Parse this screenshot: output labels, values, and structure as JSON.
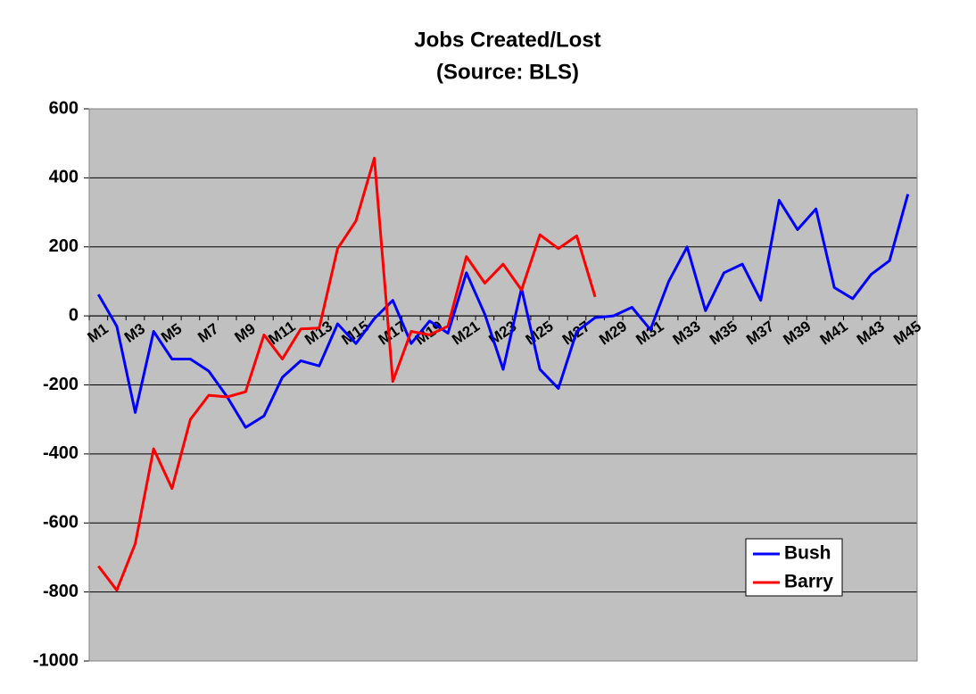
{
  "chart_data": {
    "type": "line",
    "title": "Jobs Created/Lost",
    "subtitle": "(Source: BLS)",
    "categories": [
      "M1",
      null,
      "M3",
      null,
      "M5",
      null,
      "M7",
      null,
      "M9",
      null,
      "M11",
      null,
      "M13",
      null,
      "M15",
      null,
      "M17",
      null,
      "M19",
      null,
      "M21",
      null,
      "M23",
      null,
      "M25",
      null,
      "M27",
      null,
      "M29",
      null,
      "M31",
      null,
      "M33",
      null,
      "M35",
      null,
      "M37",
      null,
      "M39",
      null,
      "M41",
      null,
      "M43",
      null,
      "M45"
    ],
    "series": [
      {
        "name": "Bush",
        "color": "#0000ff",
        "values": [
          62,
          -30,
          -280,
          -45,
          -125,
          -125,
          -160,
          -235,
          -323,
          -290,
          -178,
          -130,
          -145,
          -23,
          -80,
          -8,
          45,
          -80,
          -15,
          -50,
          125,
          5,
          -155,
          80,
          -155,
          -210,
          -45,
          -5,
          0,
          25,
          -40,
          100,
          200,
          15,
          125,
          150,
          45,
          335,
          250,
          310,
          82,
          50,
          120,
          160,
          353
        ]
      },
      {
        "name": "Barry",
        "color": "#ff0000",
        "values": [
          -725,
          -795,
          -660,
          -385,
          -500,
          -300,
          -230,
          -235,
          -220,
          -55,
          -125,
          -38,
          -35,
          195,
          275,
          457,
          -190,
          -45,
          -55,
          -30,
          172,
          95,
          150,
          75,
          235,
          195,
          232,
          55,
          null,
          null,
          null,
          null,
          null,
          null,
          null,
          null,
          null,
          null,
          null,
          null,
          null,
          null,
          null,
          null,
          null
        ]
      }
    ],
    "ylim": [
      -1000,
      600
    ],
    "yticks": [
      -1000,
      -800,
      -600,
      -400,
      -200,
      0,
      200,
      400,
      600
    ],
    "grid": true,
    "legend": "lower right",
    "background": "#c0c0c0"
  }
}
